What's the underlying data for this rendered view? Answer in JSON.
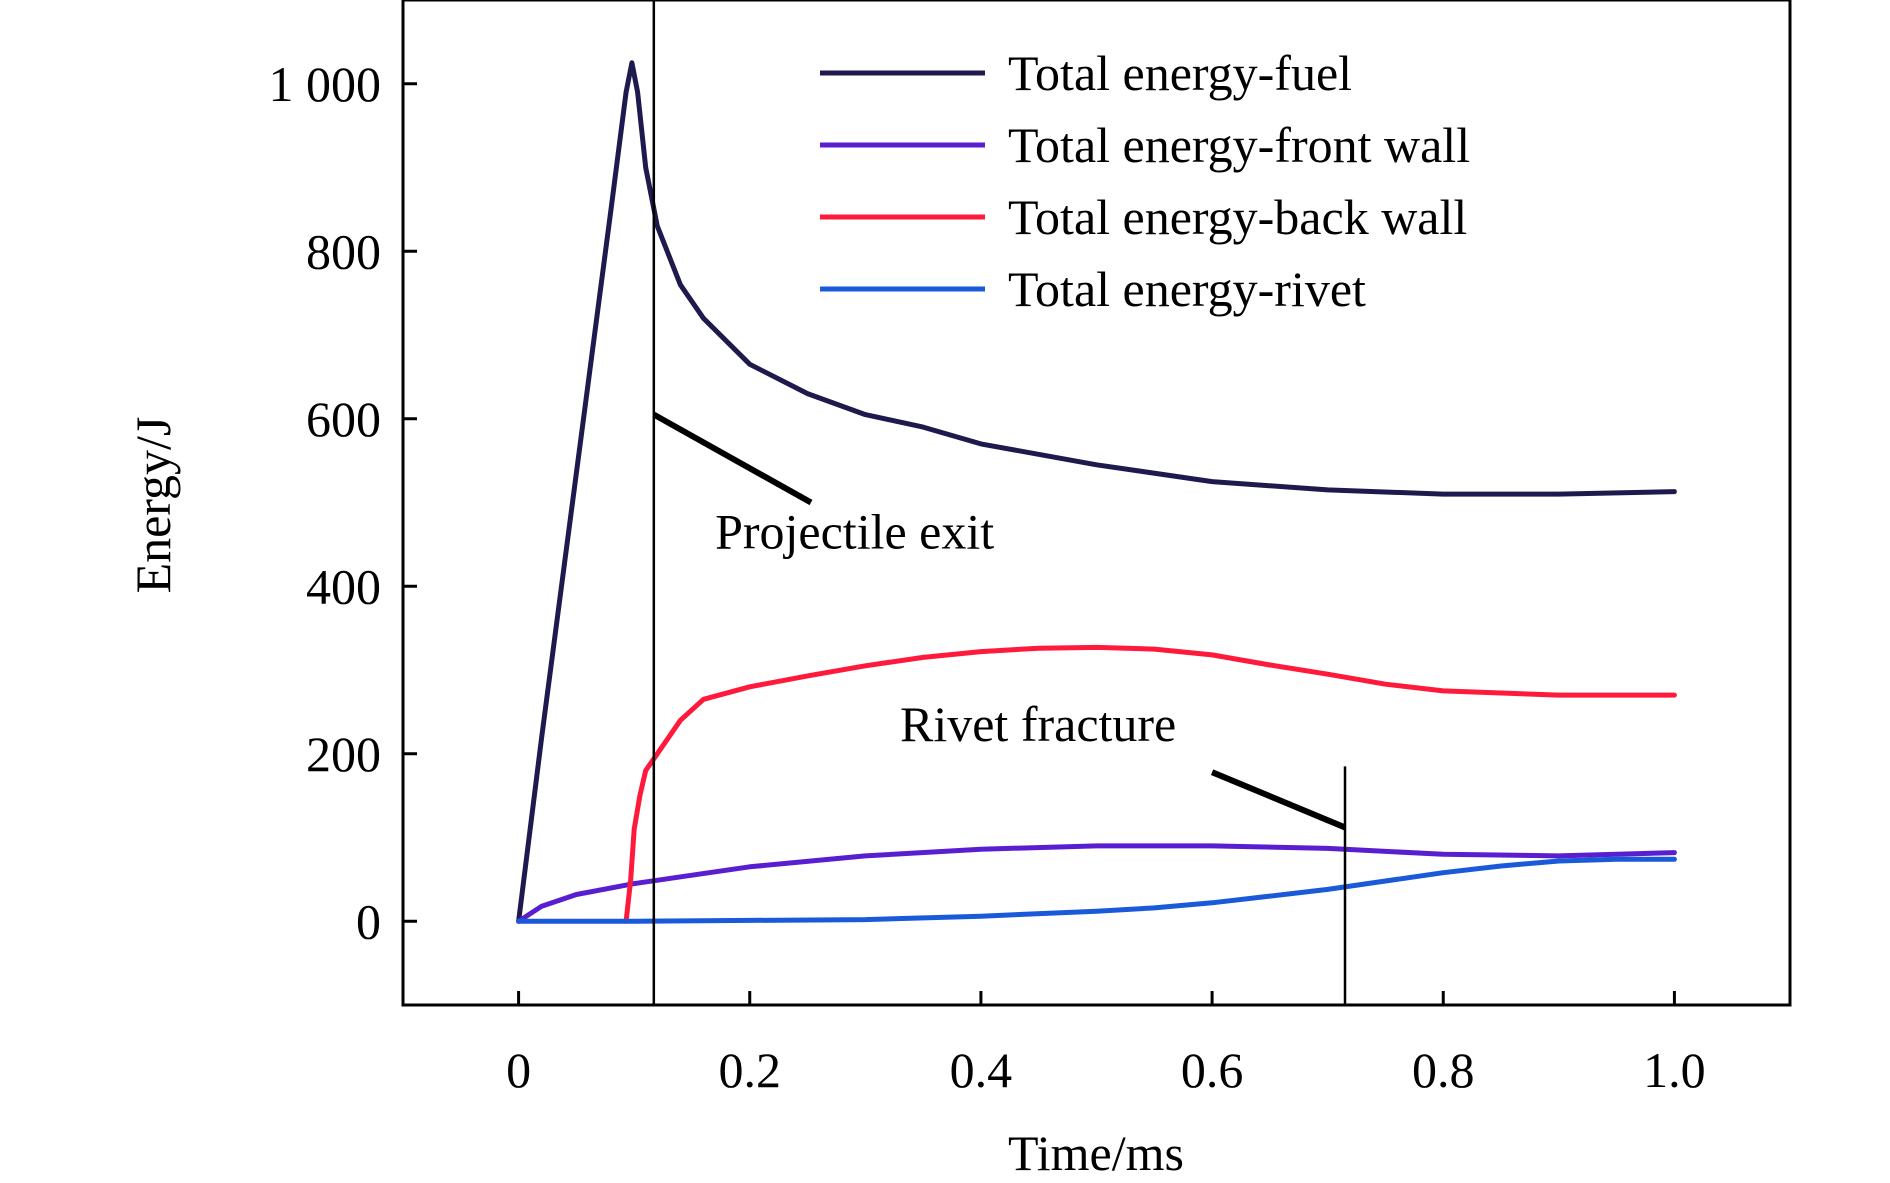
{
  "chart_data": {
    "type": "line",
    "xlabel": "Time/ms",
    "ylabel": "Energy/J",
    "xlim": [
      -0.1,
      1.1
    ],
    "ylim": [
      -100,
      1100
    ],
    "xticks": [
      0,
      0.2,
      0.4,
      0.6,
      0.8,
      1.0
    ],
    "xtick_labels": [
      "0",
      "0.2",
      "0.4",
      "0.6",
      "0.8",
      "1.0"
    ],
    "yticks": [
      0,
      200,
      400,
      600,
      800,
      1000
    ],
    "ytick_labels": [
      "0",
      "200",
      "400",
      "600",
      "800",
      "1 000"
    ],
    "grid": false,
    "legend_position": "top-right",
    "series": [
      {
        "name": "Total energy-fuel",
        "color": "#1f1a4d",
        "x": [
          0.0,
          0.02,
          0.04,
          0.06,
          0.08,
          0.093,
          0.098,
          0.103,
          0.11,
          0.12,
          0.14,
          0.16,
          0.2,
          0.25,
          0.3,
          0.35,
          0.4,
          0.5,
          0.6,
          0.7,
          0.8,
          0.9,
          1.0
        ],
        "y": [
          0,
          220,
          430,
          640,
          850,
          990,
          1025,
          990,
          900,
          830,
          760,
          720,
          665,
          630,
          605,
          590,
          570,
          545,
          525,
          515,
          510,
          510,
          513
        ]
      },
      {
        "name": "Total energy-front wall",
        "color": "#5a1ed1",
        "x": [
          0.0,
          0.02,
          0.05,
          0.1,
          0.15,
          0.2,
          0.3,
          0.4,
          0.5,
          0.6,
          0.7,
          0.8,
          0.9,
          1.0
        ],
        "y": [
          0,
          18,
          32,
          45,
          55,
          65,
          78,
          86,
          90,
          90,
          87,
          80,
          78,
          82
        ]
      },
      {
        "name": "Total energy-back wall",
        "color": "#ff1a3c",
        "x": [
          0.093,
          0.097,
          0.1,
          0.105,
          0.11,
          0.12,
          0.14,
          0.16,
          0.2,
          0.25,
          0.3,
          0.35,
          0.4,
          0.45,
          0.5,
          0.55,
          0.6,
          0.65,
          0.7,
          0.75,
          0.8,
          0.9,
          1.0
        ],
        "y": [
          0,
          50,
          110,
          150,
          180,
          200,
          240,
          265,
          280,
          293,
          305,
          315,
          322,
          326,
          327,
          325,
          318,
          306,
          295,
          283,
          275,
          270,
          270
        ]
      },
      {
        "name": "Total energy-rivet",
        "color": "#1a5ad9",
        "x": [
          0.0,
          0.1,
          0.2,
          0.3,
          0.4,
          0.5,
          0.55,
          0.6,
          0.65,
          0.7,
          0.75,
          0.8,
          0.85,
          0.9,
          0.95,
          1.0
        ],
        "y": [
          0,
          0,
          1,
          2,
          6,
          12,
          16,
          22,
          30,
          38,
          48,
          58,
          66,
          72,
          74,
          74
        ]
      }
    ],
    "annotations": [
      {
        "text": "Projectile exit",
        "marker_x": 0.117,
        "marker_y_range": [
          -100,
          1100
        ],
        "leader_from": [
          0.117,
          605
        ],
        "leader_to": [
          0.253,
          500
        ],
        "text_x": 0.17,
        "text_y": 445
      },
      {
        "text": "Rivet fracture",
        "marker_x": 0.715,
        "marker_y_range": [
          -100,
          185
        ],
        "leader_from": [
          0.6,
          178
        ],
        "leader_to": [
          0.715,
          112
        ],
        "text_x": 0.33,
        "text_y": 215
      }
    ]
  }
}
